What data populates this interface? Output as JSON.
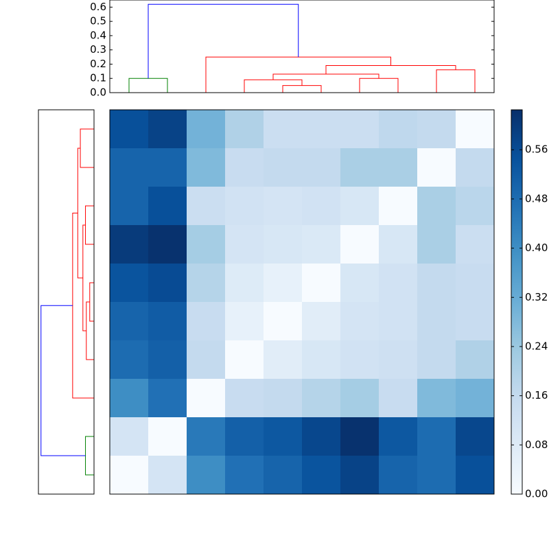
{
  "chart_data": [
    {
      "type": "dendrogram",
      "orientation": "top",
      "xlim": [
        0,
        100
      ],
      "ylim": [
        0,
        0.65
      ],
      "yticks": [
        {
          "value": 0,
          "label": "0.0"
        },
        0.1,
        0.2,
        0.3,
        0.4,
        0.5,
        0.6
      ],
      "links": [
        {
          "icoord": [
            5,
            5,
            15,
            15
          ],
          "dcoord": [
            0,
            0.1,
            0.1,
            0
          ],
          "color": "#008000"
        },
        {
          "icoord": [
            45,
            45,
            55,
            55
          ],
          "dcoord": [
            0,
            0.05,
            0.05,
            0
          ],
          "color": "#ff0000"
        },
        {
          "icoord": [
            35,
            35,
            50,
            50
          ],
          "dcoord": [
            0,
            0.09,
            0.09,
            0.05
          ],
          "color": "#ff0000"
        },
        {
          "icoord": [
            65,
            65,
            75,
            75
          ],
          "dcoord": [
            0,
            0.1,
            0.1,
            0
          ],
          "color": "#ff0000"
        },
        {
          "icoord": [
            42.5,
            42.5,
            70,
            70
          ],
          "dcoord": [
            0.09,
            0.13,
            0.13,
            0.1
          ],
          "color": "#ff0000"
        },
        {
          "icoord": [
            85,
            85,
            95,
            95
          ],
          "dcoord": [
            0,
            0.16,
            0.16,
            0
          ],
          "color": "#ff0000"
        },
        {
          "icoord": [
            56.25,
            56.25,
            90,
            90
          ],
          "dcoord": [
            0.13,
            0.19,
            0.19,
            0.16
          ],
          "color": "#ff0000"
        },
        {
          "icoord": [
            25,
            25,
            73.125,
            73.125
          ],
          "dcoord": [
            0,
            0.25,
            0.25,
            0.19
          ],
          "color": "#ff0000"
        },
        {
          "icoord": [
            10,
            10,
            49.0625,
            49.0625
          ],
          "dcoord": [
            0.1,
            0.62,
            0.62,
            0.25
          ],
          "color": "#0000ff"
        }
      ]
    },
    {
      "type": "dendrogram",
      "orientation": "left",
      "xlim": [
        0,
        100
      ],
      "ylim": [
        0,
        0.65
      ],
      "links": [
        {
          "icoord": [
            95,
            95,
            85,
            85
          ],
          "dcoord": [
            0,
            0.1,
            0.1,
            0
          ],
          "color": "#008000"
        },
        {
          "icoord": [
            55,
            55,
            45,
            45
          ],
          "dcoord": [
            0,
            0.05,
            0.05,
            0
          ],
          "color": "#ff0000"
        },
        {
          "icoord": [
            65,
            65,
            50,
            50
          ],
          "dcoord": [
            0,
            0.09,
            0.09,
            0.05
          ],
          "color": "#ff0000"
        },
        {
          "icoord": [
            35,
            35,
            25,
            25
          ],
          "dcoord": [
            0,
            0.1,
            0.1,
            0
          ],
          "color": "#ff0000"
        },
        {
          "icoord": [
            57.5,
            57.5,
            30,
            30
          ],
          "dcoord": [
            0.09,
            0.13,
            0.13,
            0.1
          ],
          "color": "#ff0000"
        },
        {
          "icoord": [
            15,
            15,
            5,
            5
          ],
          "dcoord": [
            0,
            0.16,
            0.16,
            0
          ],
          "color": "#ff0000"
        },
        {
          "icoord": [
            43.75,
            43.75,
            10,
            10
          ],
          "dcoord": [
            0.13,
            0.19,
            0.19,
            0.16
          ],
          "color": "#ff0000"
        },
        {
          "icoord": [
            75,
            75,
            26.875,
            26.875
          ],
          "dcoord": [
            0,
            0.25,
            0.25,
            0.19
          ],
          "color": "#ff0000"
        },
        {
          "icoord": [
            90,
            90,
            50.9375,
            50.9375
          ],
          "dcoord": [
            0.1,
            0.62,
            0.62,
            0.25
          ],
          "color": "#0000ff"
        }
      ]
    },
    {
      "type": "heatmap",
      "clim": [
        0,
        0.625
      ],
      "colormap": [
        "#f7fbff",
        "#deebf7",
        "#c6dbef",
        "#9ecae1",
        "#6baed6",
        "#4292c6",
        "#2171b5",
        "#08519c",
        "#08306b"
      ],
      "cticks": [
        {
          "value": 0,
          "label": "0.00"
        },
        0.08,
        0.16,
        0.24,
        0.32,
        {
          "value": 0.4,
          "label": "0.40"
        },
        0.48,
        0.56
      ],
      "matrix": [
        [
          0.55,
          0.58,
          0.3,
          0.2,
          0.14,
          0.14,
          0.14,
          0.17,
          0.16,
          0.0
        ],
        [
          0.5,
          0.5,
          0.28,
          0.15,
          0.16,
          0.16,
          0.21,
          0.21,
          0.0,
          0.16
        ],
        [
          0.5,
          0.55,
          0.14,
          0.12,
          0.11,
          0.12,
          0.1,
          0.0,
          0.21,
          0.18
        ],
        [
          0.6,
          0.62,
          0.22,
          0.11,
          0.1,
          0.09,
          0.0,
          0.1,
          0.21,
          0.14
        ],
        [
          0.54,
          0.56,
          0.19,
          0.08,
          0.05,
          0.0,
          0.1,
          0.12,
          0.16,
          0.15
        ],
        [
          0.5,
          0.52,
          0.15,
          0.05,
          0.0,
          0.07,
          0.11,
          0.12,
          0.16,
          0.15
        ],
        [
          0.48,
          0.51,
          0.16,
          0.0,
          0.07,
          0.1,
          0.12,
          0.13,
          0.16,
          0.2
        ],
        [
          0.4,
          0.47,
          0.0,
          0.15,
          0.16,
          0.19,
          0.22,
          0.15,
          0.28,
          0.3
        ],
        [
          0.11,
          0.0,
          0.45,
          0.51,
          0.53,
          0.57,
          0.62,
          0.53,
          0.48,
          0.57
        ],
        [
          0.0,
          0.11,
          0.4,
          0.47,
          0.5,
          0.54,
          0.58,
          0.5,
          0.48,
          0.55
        ]
      ]
    }
  ]
}
